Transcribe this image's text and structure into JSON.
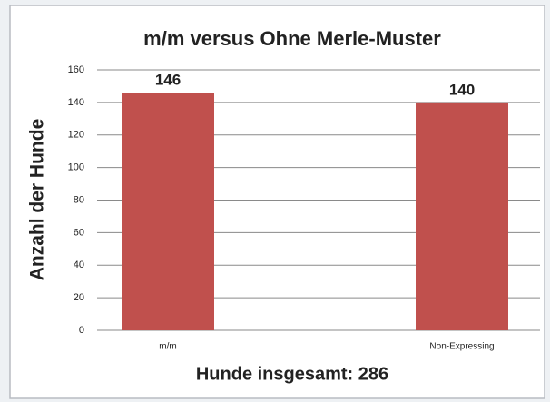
{
  "chart_data": {
    "type": "bar",
    "title": "m/m versus Ohne Merle-Muster",
    "ylabel": "Anzahl der Hunde",
    "xlabel": "Hunde insgesamt: 286",
    "categories": [
      "m/m",
      "Non-Expressing"
    ],
    "values": [
      146,
      140
    ],
    "color": "#c0504d",
    "ylim": [
      0,
      160
    ],
    "yticks": [
      0,
      20,
      40,
      60,
      80,
      100,
      120,
      140,
      160
    ],
    "grid": true
  }
}
